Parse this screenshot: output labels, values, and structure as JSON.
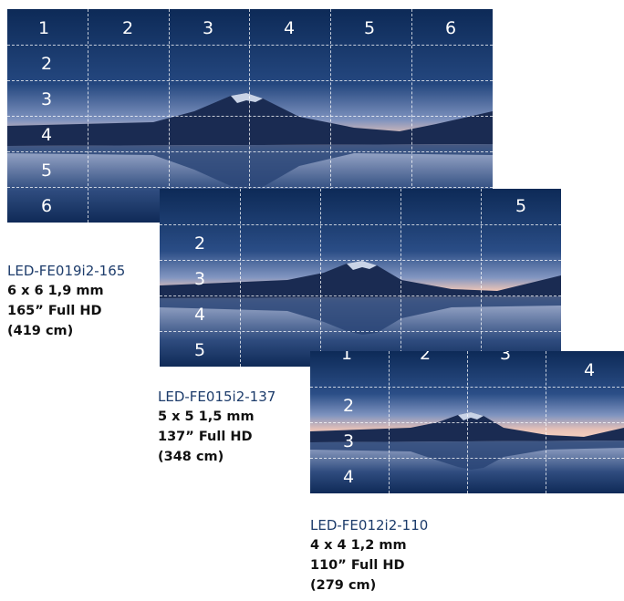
{
  "walls": [
    {
      "id": "165",
      "top_numbers": [
        "1",
        "2",
        "3",
        "4",
        "5",
        "6"
      ],
      "side_numbers": [
        "2",
        "3",
        "4",
        "5",
        "6"
      ],
      "model": "LED-FE019i2-165",
      "specs": [
        "6 x 6 1,9 mm",
        "165” Full HD",
        "(419 cm)"
      ]
    },
    {
      "id": "137",
      "top_numbers": [
        "",
        "",
        "",
        "",
        "5"
      ],
      "side_numbers": [
        "2",
        "3",
        "4",
        "5"
      ],
      "model": "LED-FE015i2-137",
      "specs": [
        "5 x 5 1,5 mm",
        "137” Full HD",
        "(348 cm)"
      ]
    },
    {
      "id": "110",
      "top_numbers": [
        "1",
        "2",
        "3",
        "4"
      ],
      "side_numbers": [
        "2",
        "3",
        "4"
      ],
      "model": "LED-FE012i2-110",
      "specs": [
        "4 x 4 1,2 mm",
        "110” Full HD",
        "(279 cm)"
      ]
    }
  ],
  "colors": {
    "sky_top": "#0d2a57",
    "sky_mid": "#4a6ea8",
    "horizon": "#e9c3b6",
    "mountain": "#1a2b52",
    "water": "#2a4577",
    "model_text": "#1d3c6b",
    "spec_text": "#111111"
  }
}
